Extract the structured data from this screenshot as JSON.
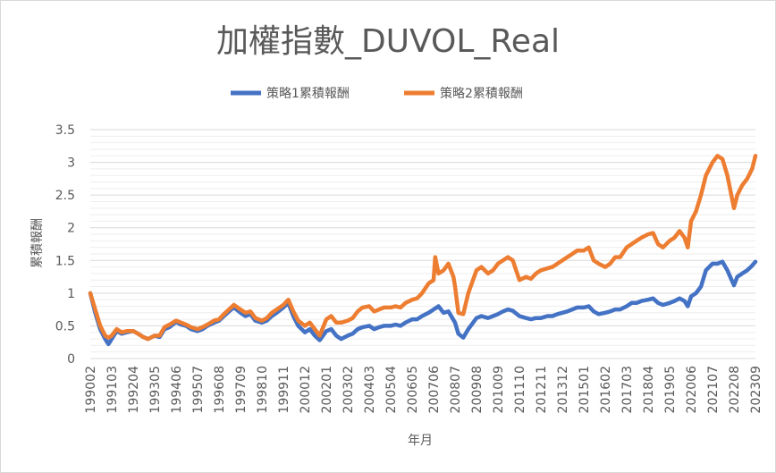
{
  "chart_data": {
    "type": "line",
    "title": "加權指數_DUVOL_Real",
    "xlabel": "年月",
    "ylabel": "累積報酬",
    "ylim": [
      0,
      3.5
    ],
    "yticks": [
      "0",
      "0.5",
      "1",
      "1.5",
      "2",
      "2.5",
      "3",
      "3.5"
    ],
    "x_tick_labels": [
      "199002",
      "199103",
      "199204",
      "199305",
      "199406",
      "199507",
      "199608",
      "199709",
      "199810",
      "199911",
      "200012",
      "200201",
      "200302",
      "200403",
      "200504",
      "200605",
      "200706",
      "200807",
      "200908",
      "201009",
      "201110",
      "201211",
      "201312",
      "201501",
      "201602",
      "201703",
      "201804",
      "201905",
      "202006",
      "202107",
      "202208",
      "202309"
    ],
    "legend_position": "top",
    "grid": true,
    "series": [
      {
        "name": "策略1累積報酬",
        "color": "#4472C4",
        "points": [
          [
            "199002",
            1.0
          ],
          [
            "199005",
            0.7
          ],
          [
            "199008",
            0.45
          ],
          [
            "199011",
            0.3
          ],
          [
            "199101",
            0.22
          ],
          [
            "199103",
            0.3
          ],
          [
            "199106",
            0.42
          ],
          [
            "199109",
            0.38
          ],
          [
            "199112",
            0.4
          ],
          [
            "199204",
            0.42
          ],
          [
            "199207",
            0.38
          ],
          [
            "199210",
            0.33
          ],
          [
            "199301",
            0.3
          ],
          [
            "199305",
            0.35
          ],
          [
            "199308",
            0.33
          ],
          [
            "199311",
            0.45
          ],
          [
            "199402",
            0.48
          ],
          [
            "199406",
            0.56
          ],
          [
            "199409",
            0.52
          ],
          [
            "199412",
            0.5
          ],
          [
            "199503",
            0.45
          ],
          [
            "199507",
            0.42
          ],
          [
            "199510",
            0.45
          ],
          [
            "199601",
            0.5
          ],
          [
            "199605",
            0.55
          ],
          [
            "199608",
            0.58
          ],
          [
            "199611",
            0.65
          ],
          [
            "199702",
            0.72
          ],
          [
            "199705",
            0.78
          ],
          [
            "199709",
            0.7
          ],
          [
            "199712",
            0.65
          ],
          [
            "199803",
            0.68
          ],
          [
            "199806",
            0.58
          ],
          [
            "199810",
            0.55
          ],
          [
            "199901",
            0.58
          ],
          [
            "199904",
            0.65
          ],
          [
            "199907",
            0.7
          ],
          [
            "199911",
            0.78
          ],
          [
            "200002",
            0.85
          ],
          [
            "200005",
            0.65
          ],
          [
            "200008",
            0.5
          ],
          [
            "200012",
            0.4
          ],
          [
            "200103",
            0.45
          ],
          [
            "200106",
            0.35
          ],
          [
            "200109",
            0.28
          ],
          [
            "200201",
            0.42
          ],
          [
            "200204",
            0.45
          ],
          [
            "200207",
            0.35
          ],
          [
            "200210",
            0.3
          ],
          [
            "200302",
            0.35
          ],
          [
            "200305",
            0.38
          ],
          [
            "200308",
            0.45
          ],
          [
            "200311",
            0.48
          ],
          [
            "200403",
            0.5
          ],
          [
            "200406",
            0.45
          ],
          [
            "200409",
            0.48
          ],
          [
            "200412",
            0.5
          ],
          [
            "200504",
            0.5
          ],
          [
            "200507",
            0.52
          ],
          [
            "200510",
            0.5
          ],
          [
            "200601",
            0.55
          ],
          [
            "200605",
            0.6
          ],
          [
            "200608",
            0.6
          ],
          [
            "200611",
            0.65
          ],
          [
            "200703",
            0.7
          ],
          [
            "200706",
            0.75
          ],
          [
            "200709",
            0.8
          ],
          [
            "200712",
            0.7
          ],
          [
            "200803",
            0.72
          ],
          [
            "200807",
            0.55
          ],
          [
            "200809",
            0.38
          ],
          [
            "200812",
            0.32
          ],
          [
            "200903",
            0.45
          ],
          [
            "200908",
            0.62
          ],
          [
            "200911",
            0.65
          ],
          [
            "201003",
            0.62
          ],
          [
            "201006",
            0.65
          ],
          [
            "201009",
            0.68
          ],
          [
            "201012",
            0.72
          ],
          [
            "201103",
            0.75
          ],
          [
            "201106",
            0.73
          ],
          [
            "201110",
            0.65
          ],
          [
            "201202",
            0.62
          ],
          [
            "201205",
            0.6
          ],
          [
            "201208",
            0.62
          ],
          [
            "201211",
            0.62
          ],
          [
            "201303",
            0.65
          ],
          [
            "201306",
            0.65
          ],
          [
            "201309",
            0.68
          ],
          [
            "201312",
            0.7
          ],
          [
            "201403",
            0.72
          ],
          [
            "201406",
            0.75
          ],
          [
            "201409",
            0.78
          ],
          [
            "201501",
            0.78
          ],
          [
            "201504",
            0.8
          ],
          [
            "201507",
            0.72
          ],
          [
            "201510",
            0.68
          ],
          [
            "201602",
            0.7
          ],
          [
            "201605",
            0.72
          ],
          [
            "201608",
            0.75
          ],
          [
            "201611",
            0.75
          ],
          [
            "201703",
            0.8
          ],
          [
            "201706",
            0.85
          ],
          [
            "201709",
            0.85
          ],
          [
            "201712",
            0.88
          ],
          [
            "201804",
            0.9
          ],
          [
            "201807",
            0.92
          ],
          [
            "201810",
            0.85
          ],
          [
            "201901",
            0.82
          ],
          [
            "201905",
            0.85
          ],
          [
            "201908",
            0.88
          ],
          [
            "201911",
            0.92
          ],
          [
            "202002",
            0.88
          ],
          [
            "202004",
            0.8
          ],
          [
            "202006",
            0.95
          ],
          [
            "202009",
            1.0
          ],
          [
            "202012",
            1.1
          ],
          [
            "202103",
            1.35
          ],
          [
            "202107",
            1.45
          ],
          [
            "202110",
            1.45
          ],
          [
            "202201",
            1.48
          ],
          [
            "202204",
            1.35
          ],
          [
            "202208",
            1.12
          ],
          [
            "202210",
            1.25
          ],
          [
            "202301",
            1.3
          ],
          [
            "202304",
            1.35
          ],
          [
            "202307",
            1.42
          ],
          [
            "202309",
            1.48
          ]
        ]
      },
      {
        "name": "策略2累積報酬",
        "color": "#ED7D31",
        "points": [
          [
            "199002",
            1.0
          ],
          [
            "199005",
            0.75
          ],
          [
            "199008",
            0.5
          ],
          [
            "199011",
            0.35
          ],
          [
            "199101",
            0.32
          ],
          [
            "199103",
            0.35
          ],
          [
            "199106",
            0.45
          ],
          [
            "199109",
            0.4
          ],
          [
            "199112",
            0.42
          ],
          [
            "199204",
            0.42
          ],
          [
            "199207",
            0.38
          ],
          [
            "199210",
            0.33
          ],
          [
            "199301",
            0.3
          ],
          [
            "199305",
            0.35
          ],
          [
            "199308",
            0.35
          ],
          [
            "199311",
            0.48
          ],
          [
            "199402",
            0.52
          ],
          [
            "199406",
            0.58
          ],
          [
            "199409",
            0.55
          ],
          [
            "199412",
            0.52
          ],
          [
            "199503",
            0.48
          ],
          [
            "199507",
            0.45
          ],
          [
            "199510",
            0.48
          ],
          [
            "199601",
            0.52
          ],
          [
            "199605",
            0.58
          ],
          [
            "199608",
            0.6
          ],
          [
            "199611",
            0.68
          ],
          [
            "199702",
            0.75
          ],
          [
            "199705",
            0.82
          ],
          [
            "199709",
            0.75
          ],
          [
            "199712",
            0.7
          ],
          [
            "199803",
            0.72
          ],
          [
            "199806",
            0.62
          ],
          [
            "199810",
            0.58
          ],
          [
            "199901",
            0.62
          ],
          [
            "199904",
            0.7
          ],
          [
            "199907",
            0.75
          ],
          [
            "199911",
            0.82
          ],
          [
            "200002",
            0.9
          ],
          [
            "200005",
            0.72
          ],
          [
            "200008",
            0.58
          ],
          [
            "200012",
            0.5
          ],
          [
            "200103",
            0.55
          ],
          [
            "200106",
            0.45
          ],
          [
            "200109",
            0.35
          ],
          [
            "200201",
            0.6
          ],
          [
            "200204",
            0.65
          ],
          [
            "200207",
            0.55
          ],
          [
            "200210",
            0.55
          ],
          [
            "200302",
            0.58
          ],
          [
            "200305",
            0.62
          ],
          [
            "200308",
            0.72
          ],
          [
            "200311",
            0.78
          ],
          [
            "200403",
            0.8
          ],
          [
            "200406",
            0.72
          ],
          [
            "200409",
            0.75
          ],
          [
            "200412",
            0.78
          ],
          [
            "200504",
            0.78
          ],
          [
            "200507",
            0.8
          ],
          [
            "200510",
            0.78
          ],
          [
            "200601",
            0.85
          ],
          [
            "200605",
            0.9
          ],
          [
            "200608",
            0.92
          ],
          [
            "200611",
            1.0
          ],
          [
            "200703",
            1.15
          ],
          [
            "200706",
            1.2
          ],
          [
            "200707",
            1.55
          ],
          [
            "200709",
            1.3
          ],
          [
            "200712",
            1.35
          ],
          [
            "200803",
            1.45
          ],
          [
            "200806",
            1.25
          ],
          [
            "200807",
            1.1
          ],
          [
            "200809",
            0.7
          ],
          [
            "200812",
            0.68
          ],
          [
            "200903",
            1.0
          ],
          [
            "200908",
            1.35
          ],
          [
            "200911",
            1.4
          ],
          [
            "201003",
            1.3
          ],
          [
            "201006",
            1.35
          ],
          [
            "201009",
            1.45
          ],
          [
            "201012",
            1.5
          ],
          [
            "201103",
            1.55
          ],
          [
            "201106",
            1.5
          ],
          [
            "201110",
            1.2
          ],
          [
            "201202",
            1.25
          ],
          [
            "201205",
            1.22
          ],
          [
            "201208",
            1.3
          ],
          [
            "201211",
            1.35
          ],
          [
            "201303",
            1.38
          ],
          [
            "201306",
            1.4
          ],
          [
            "201309",
            1.45
          ],
          [
            "201312",
            1.5
          ],
          [
            "201403",
            1.55
          ],
          [
            "201406",
            1.6
          ],
          [
            "201409",
            1.65
          ],
          [
            "201501",
            1.65
          ],
          [
            "201504",
            1.7
          ],
          [
            "201507",
            1.5
          ],
          [
            "201510",
            1.45
          ],
          [
            "201602",
            1.4
          ],
          [
            "201605",
            1.45
          ],
          [
            "201608",
            1.55
          ],
          [
            "201611",
            1.55
          ],
          [
            "201703",
            1.7
          ],
          [
            "201706",
            1.75
          ],
          [
            "201709",
            1.8
          ],
          [
            "201712",
            1.85
          ],
          [
            "201804",
            1.9
          ],
          [
            "201807",
            1.92
          ],
          [
            "201810",
            1.75
          ],
          [
            "201901",
            1.7
          ],
          [
            "201905",
            1.8
          ],
          [
            "201908",
            1.85
          ],
          [
            "201911",
            1.95
          ],
          [
            "202002",
            1.85
          ],
          [
            "202004",
            1.7
          ],
          [
            "202006",
            2.1
          ],
          [
            "202009",
            2.25
          ],
          [
            "202012",
            2.5
          ],
          [
            "202103",
            2.8
          ],
          [
            "202107",
            3.0
          ],
          [
            "202110",
            3.1
          ],
          [
            "202201",
            3.05
          ],
          [
            "202204",
            2.8
          ],
          [
            "202208",
            2.3
          ],
          [
            "202210",
            2.5
          ],
          [
            "202301",
            2.65
          ],
          [
            "202304",
            2.75
          ],
          [
            "202307",
            2.9
          ],
          [
            "202309",
            3.1
          ]
        ]
      }
    ]
  }
}
